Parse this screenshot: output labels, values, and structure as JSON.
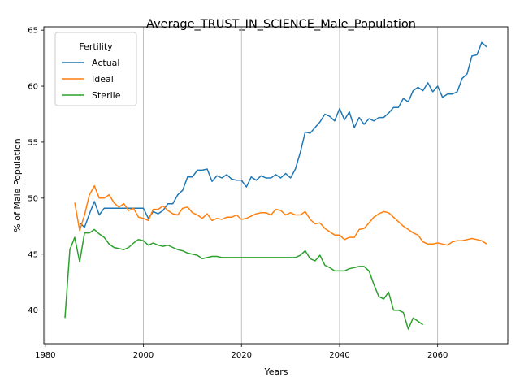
{
  "chart_data": {
    "type": "line",
    "title": "Average_TRUST_IN_SCIENCE_Male_Population",
    "xlabel": "Years",
    "ylabel": "% of Male Population",
    "xlim": [
      1979.7,
      2074.3
    ],
    "ylim": [
      37.0,
      65.3
    ],
    "xticks": [
      1980,
      2000,
      2020,
      2040,
      2060
    ],
    "yticks": [
      40,
      45,
      50,
      55,
      60,
      65
    ],
    "grid": "x-only",
    "legend": {
      "title": "Fertility",
      "position": "top-left"
    },
    "series": [
      {
        "name": "Actual",
        "color": "#1f77b4",
        "x": [
          1987,
          1988,
          1989,
          1990,
          1991,
          1992,
          1993,
          1994,
          1995,
          1996,
          1997,
          1998,
          1999,
          2000,
          2001,
          2002,
          2003,
          2004,
          2005,
          2006,
          2007,
          2008,
          2009,
          2010,
          2011,
          2012,
          2013,
          2014,
          2015,
          2016,
          2017,
          2018,
          2019,
          2020,
          2021,
          2022,
          2023,
          2024,
          2025,
          2026,
          2027,
          2028,
          2029,
          2030,
          2031,
          2032,
          2033,
          2034,
          2035,
          2036,
          2037,
          2038,
          2039,
          2040,
          2041,
          2042,
          2043,
          2044,
          2045,
          2046,
          2047,
          2048,
          2049,
          2050,
          2051,
          2052,
          2053,
          2054,
          2055,
          2056,
          2057,
          2058,
          2059,
          2060,
          2061,
          2062,
          2063,
          2064,
          2065,
          2066,
          2067,
          2068,
          2069,
          2070
        ],
        "y": [
          47.8,
          47.4,
          48.6,
          49.7,
          48.5,
          49.1,
          49.1,
          49.1,
          49.1,
          49.1,
          49.1,
          49.1,
          49.1,
          49.1,
          48.2,
          48.8,
          48.6,
          48.9,
          49.5,
          49.5,
          50.3,
          50.7,
          51.9,
          51.9,
          52.5,
          52.5,
          52.6,
          51.5,
          52.0,
          51.8,
          52.1,
          51.7,
          51.6,
          51.6,
          51.0,
          51.9,
          51.6,
          52.0,
          51.8,
          51.8,
          52.1,
          51.8,
          52.2,
          51.8,
          52.6,
          54.1,
          55.9,
          55.8,
          56.3,
          56.8,
          57.5,
          57.3,
          56.9,
          58.0,
          57.0,
          57.7,
          56.3,
          57.2,
          56.6,
          57.1,
          56.9,
          57.2,
          57.2,
          57.6,
          58.1,
          58.1,
          58.9,
          58.6,
          59.6,
          59.9,
          59.6,
          60.3,
          59.5,
          60.0,
          59.0,
          59.3,
          59.3,
          59.5,
          60.7,
          61.1,
          62.7,
          62.8,
          63.9,
          63.5
        ]
      },
      {
        "name": "Ideal",
        "color": "#ff7f0e",
        "x": [
          1986,
          1987,
          1988,
          1989,
          1990,
          1991,
          1992,
          1993,
          1994,
          1995,
          1996,
          1997,
          1998,
          1999,
          2000,
          2001,
          2002,
          2003,
          2004,
          2005,
          2006,
          2007,
          2008,
          2009,
          2010,
          2011,
          2012,
          2013,
          2014,
          2015,
          2016,
          2017,
          2018,
          2019,
          2020,
          2021,
          2022,
          2023,
          2024,
          2025,
          2026,
          2027,
          2028,
          2029,
          2030,
          2031,
          2032,
          2033,
          2034,
          2035,
          2036,
          2037,
          2038,
          2039,
          2040,
          2041,
          2042,
          2043,
          2044,
          2045,
          2046,
          2047,
          2048,
          2049,
          2050,
          2051,
          2052,
          2053,
          2054,
          2055,
          2056,
          2057,
          2058,
          2059,
          2060,
          2061,
          2062,
          2063,
          2064,
          2065,
          2066,
          2067,
          2068,
          2069,
          2070
        ],
        "y": [
          49.6,
          47.1,
          48.5,
          50.3,
          51.1,
          50.0,
          50.0,
          50.3,
          49.6,
          49.2,
          49.5,
          48.9,
          49.1,
          48.3,
          48.2,
          48.0,
          49.0,
          49.0,
          49.3,
          48.9,
          48.6,
          48.5,
          49.1,
          49.2,
          48.7,
          48.5,
          48.2,
          48.6,
          48.0,
          48.2,
          48.1,
          48.3,
          48.3,
          48.5,
          48.1,
          48.2,
          48.4,
          48.6,
          48.7,
          48.7,
          48.5,
          49.0,
          48.9,
          48.5,
          48.7,
          48.5,
          48.5,
          48.8,
          48.1,
          47.7,
          47.8,
          47.3,
          47.0,
          46.7,
          46.7,
          46.3,
          46.5,
          46.5,
          47.2,
          47.3,
          47.8,
          48.3,
          48.6,
          48.8,
          48.7,
          48.3,
          47.9,
          47.5,
          47.2,
          46.9,
          46.7,
          46.1,
          45.9,
          45.9,
          46.0,
          45.9,
          45.8,
          46.1,
          46.2,
          46.2,
          46.3,
          46.4,
          46.3,
          46.2,
          45.9
        ]
      },
      {
        "name": "Sterile",
        "color": "#2ca02c",
        "x": [
          1984,
          1985,
          1986,
          1987,
          1988,
          1989,
          1990,
          1991,
          1992,
          1993,
          1994,
          1995,
          1996,
          1997,
          1998,
          1999,
          2000,
          2001,
          2002,
          2003,
          2004,
          2005,
          2006,
          2007,
          2008,
          2009,
          2010,
          2011,
          2012,
          2013,
          2014,
          2015,
          2016,
          2017,
          2018,
          2019,
          2020,
          2021,
          2022,
          2023,
          2024,
          2025,
          2026,
          2027,
          2028,
          2029,
          2030,
          2031,
          2032,
          2033,
          2034,
          2035,
          2036,
          2037,
          2038,
          2039,
          2040,
          2041,
          2042,
          2043,
          2044,
          2045,
          2046,
          2047,
          2048,
          2049,
          2050,
          2051,
          2052,
          2053,
          2054,
          2055,
          2056,
          2057
        ],
        "y": [
          39.3,
          45.4,
          46.5,
          44.3,
          46.9,
          46.9,
          47.2,
          46.8,
          46.5,
          45.9,
          45.6,
          45.5,
          45.4,
          45.6,
          46.0,
          46.3,
          46.2,
          45.8,
          46.0,
          45.8,
          45.7,
          45.8,
          45.6,
          45.4,
          45.3,
          45.1,
          45.0,
          44.9,
          44.6,
          44.7,
          44.8,
          44.8,
          44.7,
          44.7,
          44.7,
          44.7,
          44.7,
          44.7,
          44.7,
          44.7,
          44.7,
          44.7,
          44.7,
          44.7,
          44.7,
          44.7,
          44.7,
          44.7,
          44.9,
          45.3,
          44.6,
          44.4,
          44.9,
          44.0,
          43.8,
          43.5,
          43.5,
          43.5,
          43.7,
          43.8,
          43.9,
          43.9,
          43.5,
          42.3,
          41.2,
          41.0,
          41.6,
          40.0,
          40.0,
          39.8,
          38.3,
          39.3,
          39.0,
          38.7
        ]
      }
    ]
  }
}
